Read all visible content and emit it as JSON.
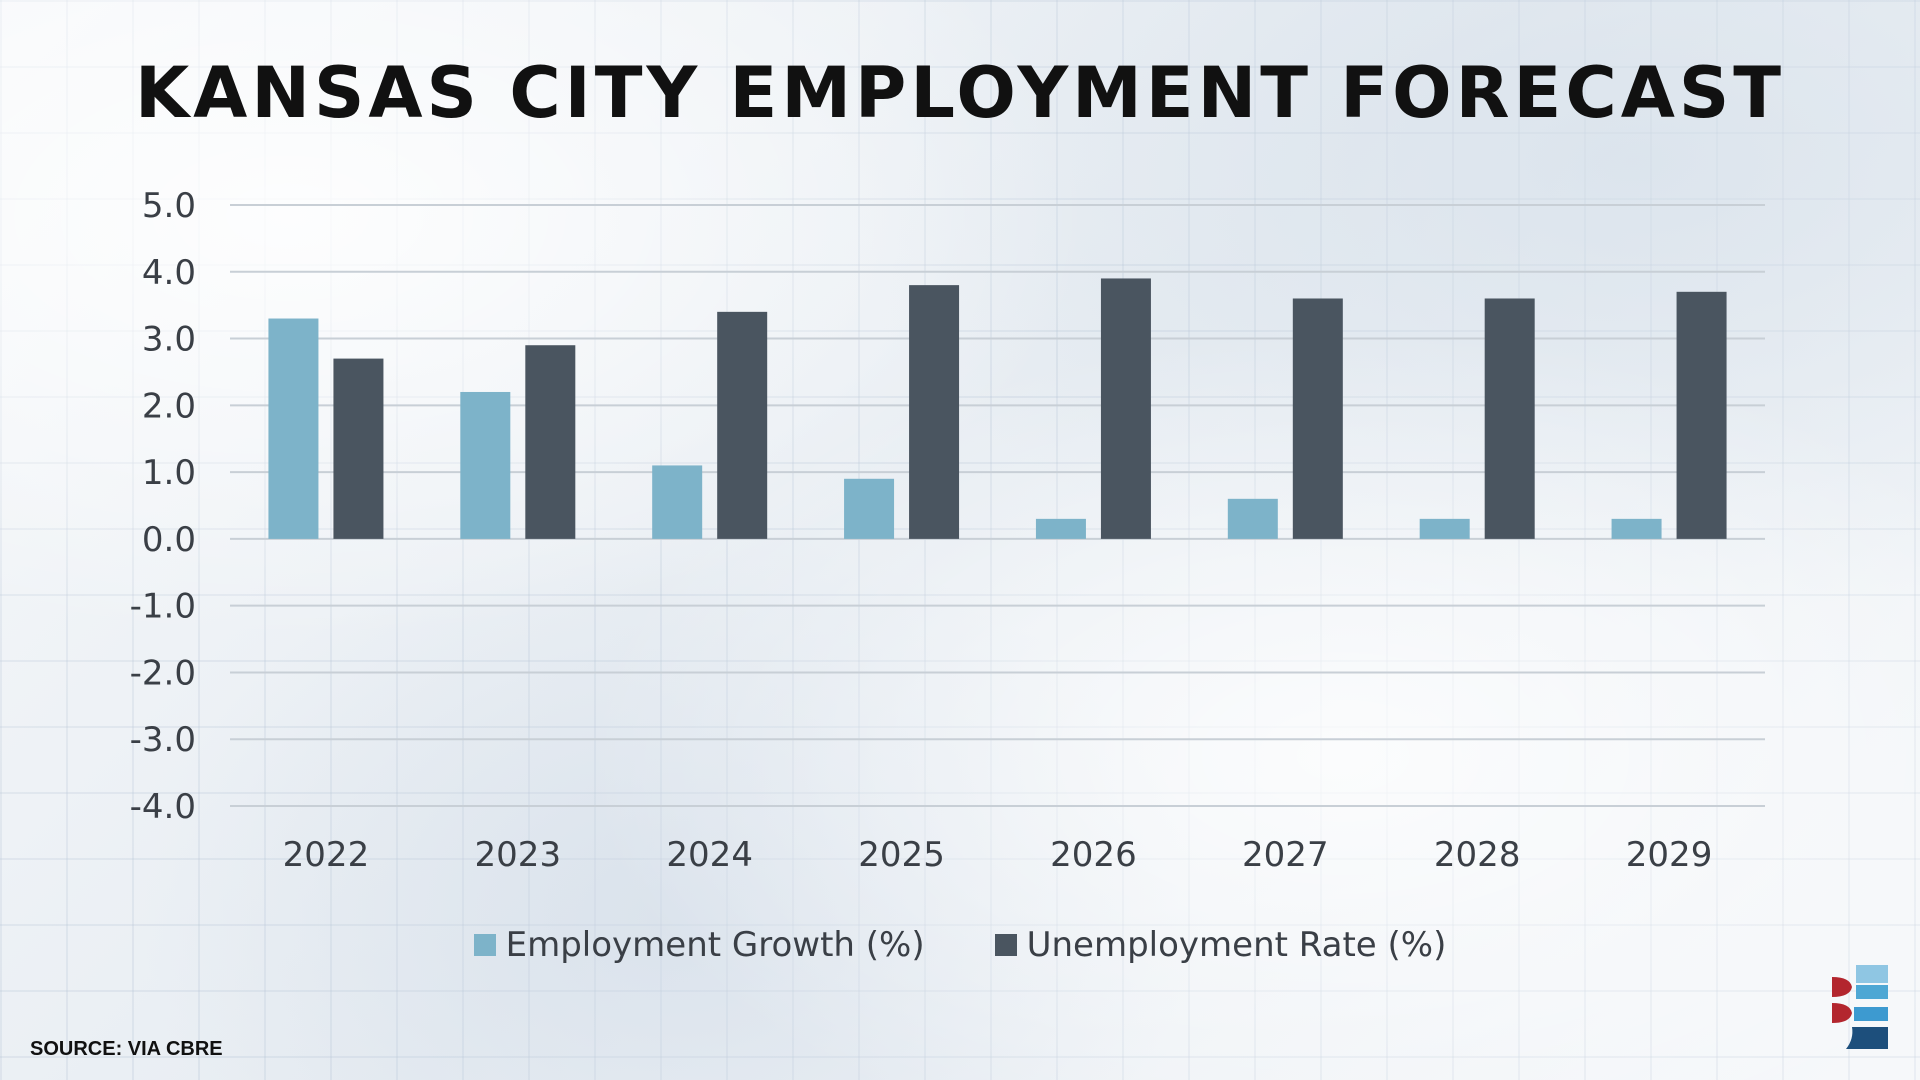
{
  "title": "KANSAS CITY EMPLOYMENT FORECAST",
  "source": "SOURCE: VIA CBRE",
  "colors": {
    "employment_growth": "#7db3c9",
    "unemployment_rate": "#4a5560",
    "gridline": "#c8cfd6"
  },
  "logo_icon": "brand-logo-icon",
  "chart_data": {
    "type": "bar",
    "title": "KANSAS CITY EMPLOYMENT FORECAST",
    "xlabel": "",
    "ylabel": "",
    "ylim": [
      -4.0,
      5.0
    ],
    "yticks": [
      "5.0",
      "4.0",
      "3.0",
      "2.0",
      "1.0",
      "0.0",
      "-1.0",
      "-2.0",
      "-3.0",
      "-4.0"
    ],
    "grid": true,
    "legend_position": "bottom-center",
    "categories": [
      "2022",
      "2023",
      "2024",
      "2025",
      "2026",
      "2027",
      "2028",
      "2029"
    ],
    "series": [
      {
        "name": "Employment Growth (%)",
        "values": [
          3.3,
          2.2,
          1.1,
          0.9,
          0.3,
          0.6,
          0.3,
          0.3
        ]
      },
      {
        "name": "Unemployment Rate (%)",
        "values": [
          2.7,
          2.9,
          3.4,
          3.8,
          3.9,
          3.6,
          3.6,
          3.7
        ]
      }
    ]
  }
}
